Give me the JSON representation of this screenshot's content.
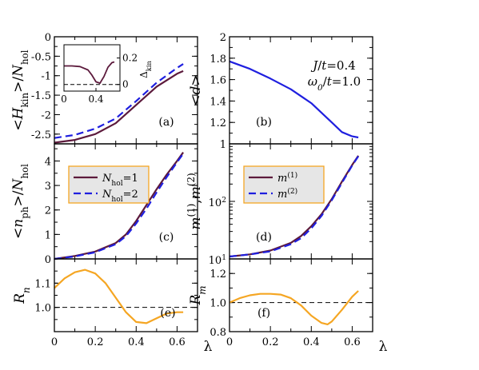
{
  "chart_data": [
    {
      "id": "a",
      "panel_label": "(a)",
      "type": "line",
      "ylabel": "<H_kin>/N_hol",
      "xlim": [
        0,
        0.7
      ],
      "ylim": [
        -2.75,
        0
      ],
      "xticks": [],
      "yticks": [
        0,
        -0.5,
        -1,
        -1.5,
        -2,
        -2.5
      ],
      "ytick_labels": [
        "0",
        "-0.5",
        "-1",
        "-1.5",
        "-2",
        "-2.5"
      ],
      "series": [
        {
          "name": "N_hol=1",
          "color": "#5c1a3c",
          "dash": "solid",
          "x": [
            0,
            0.1,
            0.2,
            0.3,
            0.4,
            0.5,
            0.6,
            0.63
          ],
          "y": [
            -2.72,
            -2.65,
            -2.5,
            -2.22,
            -1.75,
            -1.28,
            -0.95,
            -0.88
          ]
        },
        {
          "name": "N_hol=2",
          "color": "#1f1fdf",
          "dash": "dashed",
          "x": [
            0,
            0.1,
            0.2,
            0.3,
            0.4,
            0.5,
            0.6,
            0.63
          ],
          "y": [
            -2.6,
            -2.52,
            -2.36,
            -2.1,
            -1.65,
            -1.18,
            -0.8,
            -0.7
          ]
        }
      ],
      "inset": {
        "ylabel": "Δ_kin",
        "xlim": [
          0,
          0.7
        ],
        "ylim": [
          -0.05,
          0.3
        ],
        "xticks": [
          0,
          0.4
        ],
        "xtick_labels": [
          "0",
          "0.4"
        ],
        "yticks": [
          0,
          0.2
        ],
        "ytick_labels": [
          "0",
          "0.2"
        ],
        "series": [
          {
            "color": "#5c1a3c",
            "x": [
              0,
              0.1,
              0.2,
              0.3,
              0.35,
              0.4,
              0.45,
              0.5,
              0.55,
              0.6,
              0.63
            ],
            "y": [
              0.14,
              0.14,
              0.135,
              0.11,
              0.07,
              0.02,
              0.01,
              0.06,
              0.13,
              0.165,
              0.17
            ]
          }
        ],
        "reference_line": 0
      }
    },
    {
      "id": "b",
      "panel_label": "(b)",
      "type": "line",
      "ylabel": "<d>",
      "xlim": [
        0,
        0.7
      ],
      "ylim": [
        1,
        2
      ],
      "xticks": [],
      "yticks": [
        1,
        1.2,
        1.4,
        1.6,
        1.8,
        2
      ],
      "ytick_labels": [
        "1",
        "1.2",
        "1.4",
        "1.6",
        "1.8",
        "2"
      ],
      "annotations": [
        "J/t=0.4",
        "ω0/t=1.0"
      ],
      "series": [
        {
          "color": "#1f1fdf",
          "dash": "solid",
          "x": [
            0,
            0.1,
            0.2,
            0.3,
            0.4,
            0.5,
            0.55,
            0.6,
            0.63
          ],
          "y": [
            1.77,
            1.7,
            1.61,
            1.51,
            1.38,
            1.2,
            1.11,
            1.07,
            1.06
          ]
        }
      ]
    },
    {
      "id": "c",
      "panel_label": "(c)",
      "type": "line",
      "ylabel": "<n_ph>/N_hol",
      "xlim": [
        0,
        0.7
      ],
      "ylim": [
        0,
        4.7
      ],
      "xticks": [],
      "yticks": [
        0,
        1,
        2,
        3,
        4
      ],
      "ytick_labels": [
        "0",
        "1",
        "2",
        "3",
        "4"
      ],
      "legend": {
        "placement": "top-left",
        "entries": [
          "N_hol=1",
          "N_hol=2"
        ]
      },
      "series": [
        {
          "name": "N_hol=1",
          "color": "#5c1a3c",
          "dash": "solid",
          "x": [
            0,
            0.1,
            0.2,
            0.3,
            0.35,
            0.4,
            0.45,
            0.5,
            0.55,
            0.6,
            0.63
          ],
          "y": [
            0,
            0.12,
            0.3,
            0.65,
            1.0,
            1.55,
            2.2,
            2.85,
            3.45,
            4.0,
            4.35
          ]
        },
        {
          "name": "N_hol=2",
          "color": "#1f1fdf",
          "dash": "dashed",
          "x": [
            0,
            0.1,
            0.2,
            0.3,
            0.35,
            0.4,
            0.45,
            0.5,
            0.55,
            0.6,
            0.63
          ],
          "y": [
            0,
            0.1,
            0.27,
            0.6,
            0.93,
            1.45,
            2.05,
            2.72,
            3.35,
            3.95,
            4.3
          ]
        }
      ]
    },
    {
      "id": "d",
      "panel_label": "(d)",
      "type": "line",
      "yscale": "log",
      "ylabel": "m(1),m(2)",
      "xlim": [
        0,
        0.7
      ],
      "ylim": [
        10,
        1000
      ],
      "xticks": [],
      "yticks": [
        10,
        100
      ],
      "ytick_labels": [
        [
          "10",
          "1"
        ],
        [
          "10",
          "2"
        ]
      ],
      "legend": {
        "placement": "top-left",
        "entries": [
          "m(1)",
          "m(2)"
        ]
      },
      "series": [
        {
          "name": "m(1)",
          "color": "#5c1a3c",
          "dash": "solid",
          "x": [
            0,
            0.1,
            0.2,
            0.3,
            0.35,
            0.4,
            0.45,
            0.5,
            0.55,
            0.6,
            0.63
          ],
          "y": [
            11,
            12,
            14,
            19,
            25,
            37,
            60,
            110,
            220,
            430,
            620
          ]
        },
        {
          "name": "m(2)",
          "color": "#1f1fdf",
          "dash": "dashed",
          "x": [
            0,
            0.1,
            0.2,
            0.3,
            0.35,
            0.4,
            0.45,
            0.5,
            0.55,
            0.6,
            0.63
          ],
          "y": [
            11,
            12,
            13.5,
            18,
            23,
            34,
            56,
            105,
            210,
            420,
            610
          ]
        }
      ]
    },
    {
      "id": "e",
      "panel_label": "(e)",
      "type": "line",
      "ylabel": "R_n",
      "xlabel": "λ",
      "xlim": [
        0,
        0.7
      ],
      "ylim": [
        0.9,
        1.2
      ],
      "xticks": [
        0,
        0.2,
        0.4,
        0.6
      ],
      "xtick_labels": [
        "0",
        "0.2",
        "0.4",
        "0.6"
      ],
      "yticks": [
        1.0,
        1.1
      ],
      "ytick_labels": [
        "1.0",
        "1.1"
      ],
      "reference_line": 1.0,
      "series": [
        {
          "color": "#f5a623",
          "dash": "solid",
          "x": [
            0,
            0.05,
            0.1,
            0.15,
            0.2,
            0.25,
            0.3,
            0.35,
            0.4,
            0.45,
            0.5,
            0.55,
            0.6,
            0.63
          ],
          "y": [
            1.08,
            1.12,
            1.145,
            1.155,
            1.14,
            1.1,
            1.04,
            0.98,
            0.94,
            0.935,
            0.955,
            0.975,
            0.98,
            0.98
          ]
        }
      ]
    },
    {
      "id": "f",
      "panel_label": "(f)",
      "type": "line",
      "ylabel": "R_m",
      "xlabel": "λ",
      "xlim": [
        0,
        0.7
      ],
      "ylim": [
        0.8,
        1.3
      ],
      "xticks": [
        0,
        0.2,
        0.4,
        0.6
      ],
      "xtick_labels": [
        "0",
        "0.2",
        "0.4",
        "0.6"
      ],
      "yticks": [
        0.8,
        1.0,
        1.2
      ],
      "ytick_labels": [
        "0.8",
        "1.0",
        "1.2"
      ],
      "reference_line": 1.0,
      "series": [
        {
          "color": "#f5a623",
          "dash": "solid",
          "x": [
            0,
            0.05,
            0.1,
            0.15,
            0.2,
            0.25,
            0.3,
            0.35,
            0.4,
            0.45,
            0.48,
            0.5,
            0.55,
            0.6,
            0.63
          ],
          "y": [
            1.0,
            1.03,
            1.05,
            1.06,
            1.06,
            1.055,
            1.03,
            0.98,
            0.91,
            0.86,
            0.85,
            0.87,
            0.95,
            1.04,
            1.08
          ]
        }
      ]
    }
  ]
}
